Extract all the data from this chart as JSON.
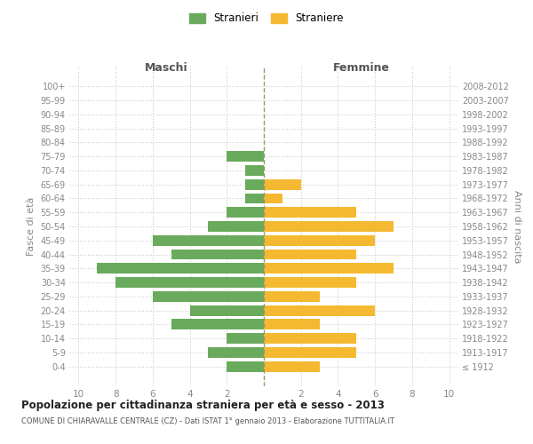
{
  "age_groups": [
    "100+",
    "95-99",
    "90-94",
    "85-89",
    "80-84",
    "75-79",
    "70-74",
    "65-69",
    "60-64",
    "55-59",
    "50-54",
    "45-49",
    "40-44",
    "35-39",
    "30-34",
    "25-29",
    "20-24",
    "15-19",
    "10-14",
    "5-9",
    "0-4"
  ],
  "birth_years": [
    "≤ 1912",
    "1913-1917",
    "1918-1922",
    "1923-1927",
    "1928-1932",
    "1933-1937",
    "1938-1942",
    "1943-1947",
    "1948-1952",
    "1953-1957",
    "1958-1962",
    "1963-1967",
    "1968-1972",
    "1973-1977",
    "1978-1982",
    "1983-1987",
    "1988-1992",
    "1993-1997",
    "1998-2002",
    "2003-2007",
    "2008-2012"
  ],
  "males": [
    0,
    0,
    0,
    0,
    0,
    2,
    1,
    1,
    1,
    2,
    3,
    6,
    5,
    9,
    8,
    6,
    4,
    5,
    2,
    3,
    2
  ],
  "females": [
    0,
    0,
    0,
    0,
    0,
    0,
    0,
    2,
    1,
    5,
    7,
    6,
    5,
    7,
    5,
    3,
    6,
    3,
    5,
    5,
    3
  ],
  "male_color": "#6aaa5c",
  "female_color": "#f5b931",
  "center_line_color": "#999966",
  "grid_color": "#cccccc",
  "bg_color": "#ffffff",
  "title": "Popolazione per cittadinanza straniera per età e sesso - 2013",
  "subtitle": "COMUNE DI CHIARAVALLE CENTRALE (CZ) - Dati ISTAT 1° gennaio 2013 - Elaborazione TUTTITALIA.IT",
  "xlabel_left": "Maschi",
  "xlabel_right": "Femmine",
  "ylabel_left": "Fasce di età",
  "ylabel_right": "Anni di nascita",
  "legend_male": "Stranieri",
  "legend_female": "Straniere"
}
